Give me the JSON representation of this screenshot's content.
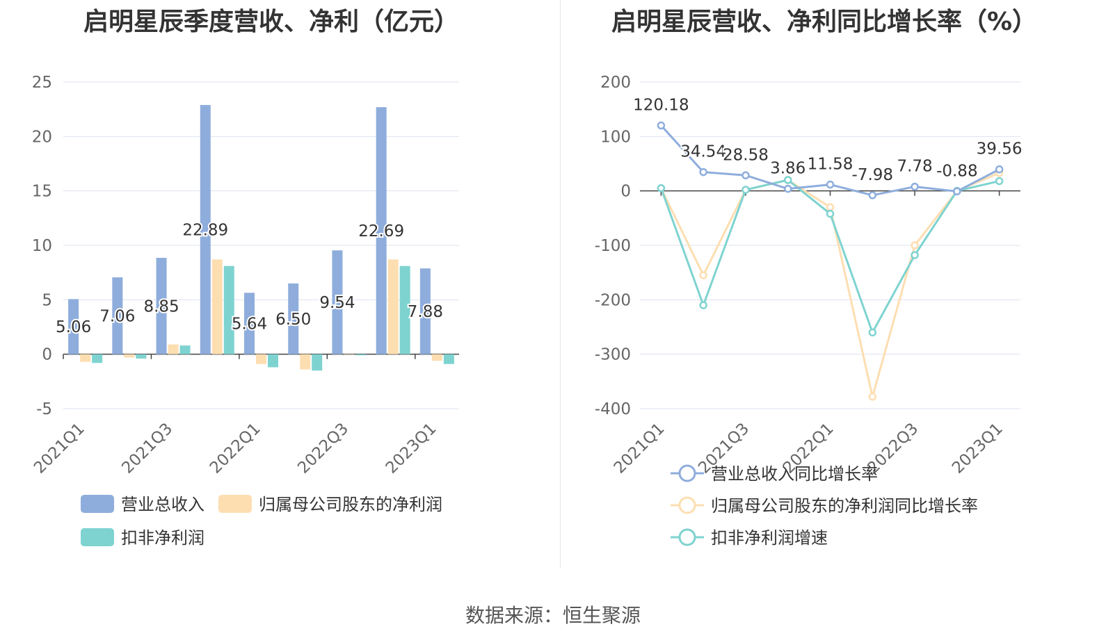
{
  "left_chart_title": "启明星辰季度营收、净利（亿元）",
  "right_chart_title": "启明星辰营收、净利同比增长率（%）",
  "source": "数据来源：恒生聚源",
  "chart_data": [
    {
      "type": "bar",
      "title": "启明星辰季度营收、净利（亿元）",
      "categories": [
        "2021Q1",
        "2021Q2",
        "2021Q3",
        "2021Q4",
        "2022Q1",
        "2022Q2",
        "2022Q3",
        "2022Q4",
        "2023Q1"
      ],
      "x_tick_labels": [
        "2021Q1",
        "2021Q3",
        "2022Q1",
        "2022Q3",
        "2023Q1"
      ],
      "ylim": [
        -5,
        25
      ],
      "yticks": [
        -5,
        0,
        5,
        10,
        15,
        20,
        25
      ],
      "grid": true,
      "legend_position": "bottom-left",
      "series": [
        {
          "name": "营业总收入",
          "color": "#8eaddc",
          "values": [
            5.06,
            7.06,
            8.85,
            22.89,
            5.64,
            6.5,
            9.54,
            22.69,
            7.88
          ],
          "labels": [
            "5.06",
            "7.06",
            "8.85",
            "22.89",
            "5.64",
            "6.50",
            "9.54",
            "22.69",
            "7.88"
          ]
        },
        {
          "name": "归属母公司股东的净利润",
          "color": "#fddeb1",
          "values": [
            -0.7,
            -0.3,
            0.9,
            8.7,
            -0.9,
            -1.4,
            0.0,
            8.7,
            -0.6
          ]
        },
        {
          "name": "扣非净利润",
          "color": "#7ed3d0",
          "values": [
            -0.8,
            -0.4,
            0.8,
            8.1,
            -1.2,
            -1.5,
            -0.1,
            8.1,
            -0.9
          ]
        }
      ]
    },
    {
      "type": "line",
      "title": "启明星辰营收、净利同比增长率（%）",
      "categories": [
        "2021Q1",
        "2021Q2",
        "2021Q3",
        "2021Q4",
        "2022Q1",
        "2022Q2",
        "2022Q3",
        "2022Q4",
        "2023Q1"
      ],
      "x_tick_labels": [
        "2021Q1",
        "2021Q3",
        "2022Q1",
        "2022Q3",
        "2023Q1"
      ],
      "ylim": [
        -400,
        200
      ],
      "yticks": [
        -400,
        -300,
        -200,
        -100,
        0,
        100,
        200
      ],
      "grid": true,
      "legend_position": "bottom-center",
      "series": [
        {
          "name": "营业总收入同比增长率",
          "color": "#8eaddc",
          "values": [
            120.18,
            34.54,
            28.58,
            3.86,
            11.58,
            -7.98,
            7.78,
            -0.88,
            39.56
          ],
          "labels": [
            "120.18",
            "34.54",
            "28.58",
            "3.86",
            "11.58",
            "-7.98",
            "7.78",
            "-0.88",
            "39.56"
          ]
        },
        {
          "name": "归属母公司股东的净利润同比增长率",
          "color": "#fddeb1",
          "values": [
            5,
            -155,
            2,
            20,
            -30,
            -378,
            -100,
            0,
            33
          ]
        },
        {
          "name": "扣非净利润增速",
          "color": "#7ed3d0",
          "values": [
            5,
            -210,
            2,
            20,
            -42,
            -260,
            -118,
            0,
            18
          ]
        }
      ]
    }
  ]
}
